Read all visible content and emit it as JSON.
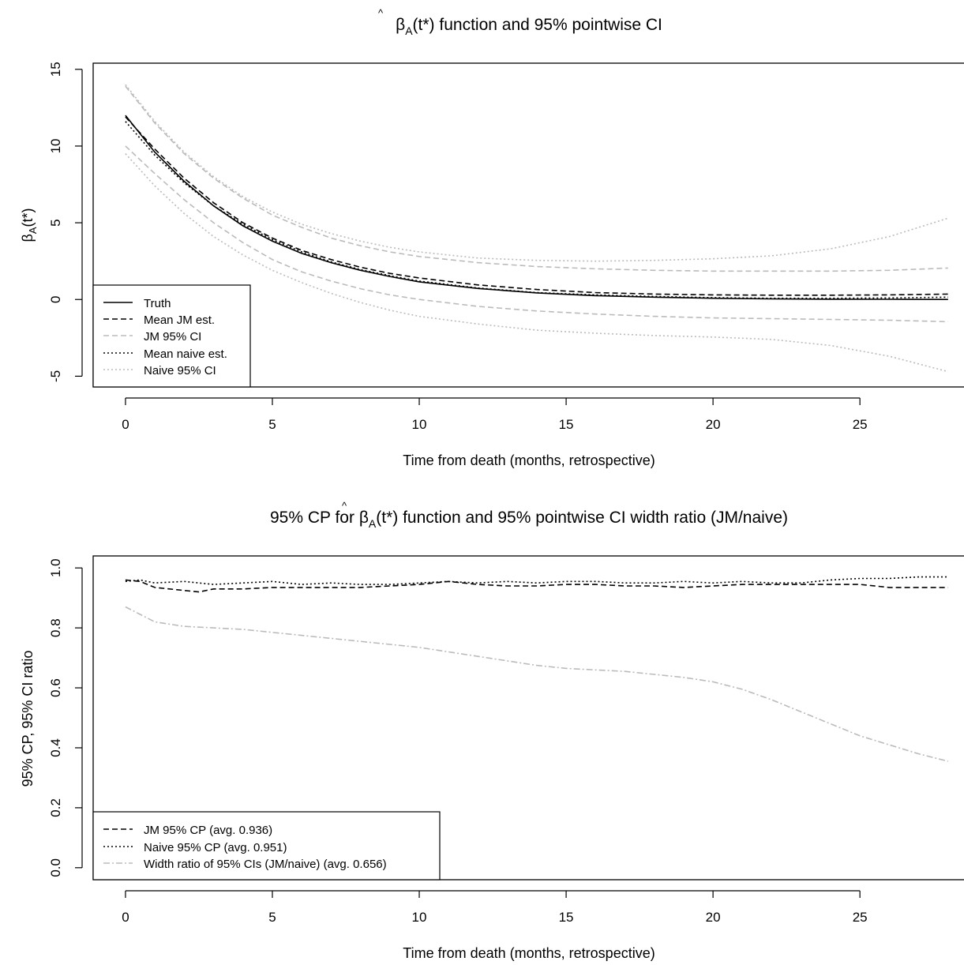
{
  "chart_data": [
    {
      "type": "line",
      "title_prefix": "",
      "title_symbol": "β",
      "title_symbol_sub": "A",
      "title_suffix": "(t*) function and 95% pointwise CI",
      "xlabel": "Time from death (months, retrospective)",
      "ylabel_symbol": "β",
      "ylabel_sub": "A",
      "ylabel_suffix": "(t*)",
      "xlim": [
        -1.1,
        29.0
      ],
      "ylim": [
        -5.7,
        15.4
      ],
      "xticks": [
        0,
        5,
        10,
        15,
        20,
        25
      ],
      "yticks": [
        -5,
        0,
        5,
        10,
        15
      ],
      "legend_position": "bottom-left",
      "series": [
        {
          "name": "Truth",
          "style": "solid",
          "color": "#000000",
          "x": [
            0,
            1,
            2,
            3,
            4,
            5,
            6,
            7,
            8,
            9,
            10,
            12,
            14,
            16,
            18,
            20,
            22,
            24,
            26,
            28
          ],
          "y": [
            12.0,
            9.6,
            7.7,
            6.1,
            4.8,
            3.8,
            3.0,
            2.4,
            1.9,
            1.5,
            1.15,
            0.72,
            0.43,
            0.25,
            0.15,
            0.08,
            0.04,
            0.02,
            0.01,
            0.0
          ]
        },
        {
          "name": "Mean JM est.",
          "style": "dashed",
          "color": "#000000",
          "x": [
            0,
            1,
            2,
            3,
            4,
            5,
            6,
            7,
            8,
            9,
            10,
            12,
            14,
            16,
            18,
            20,
            22,
            24,
            26,
            28
          ],
          "y": [
            11.9,
            9.8,
            7.9,
            6.3,
            5.0,
            4.0,
            3.2,
            2.6,
            2.1,
            1.7,
            1.4,
            0.95,
            0.65,
            0.45,
            0.35,
            0.3,
            0.28,
            0.28,
            0.3,
            0.35
          ]
        },
        {
          "name": "JM 95% CI",
          "style": "dashed",
          "color": "#bbbbbb",
          "x": [
            0,
            1,
            2,
            3,
            4,
            5,
            6,
            7,
            8,
            9,
            10,
            12,
            14,
            16,
            18,
            20,
            22,
            24,
            26,
            28
          ],
          "y": [
            13.9,
            11.5,
            9.5,
            7.9,
            6.6,
            5.5,
            4.7,
            4.0,
            3.5,
            3.1,
            2.8,
            2.4,
            2.15,
            2.0,
            1.9,
            1.85,
            1.85,
            1.85,
            1.9,
            2.05
          ]
        },
        {
          "name": "",
          "style": "dashed",
          "color": "#bbbbbb",
          "x": [
            0,
            1,
            2,
            3,
            4,
            5,
            6,
            7,
            8,
            9,
            10,
            12,
            14,
            16,
            18,
            20,
            22,
            24,
            26,
            28
          ],
          "y": [
            10.0,
            8.2,
            6.5,
            5.0,
            3.7,
            2.6,
            1.8,
            1.2,
            0.7,
            0.3,
            0.0,
            -0.45,
            -0.75,
            -0.95,
            -1.1,
            -1.2,
            -1.25,
            -1.3,
            -1.35,
            -1.45
          ]
        },
        {
          "name": "Mean naive est.",
          "style": "dotted",
          "color": "#000000",
          "x": [
            0,
            1,
            2,
            3,
            4,
            5,
            6,
            7,
            8,
            9,
            10,
            12,
            14,
            16,
            18,
            20,
            22,
            24,
            26,
            28
          ],
          "y": [
            11.6,
            9.4,
            7.6,
            6.1,
            4.9,
            3.9,
            3.1,
            2.45,
            1.95,
            1.55,
            1.2,
            0.75,
            0.45,
            0.3,
            0.2,
            0.12,
            0.08,
            0.08,
            0.1,
            0.15
          ]
        },
        {
          "name": "Naive 95% CI",
          "style": "dotted",
          "color": "#bbbbbb",
          "x": [
            0,
            1,
            2,
            3,
            4,
            5,
            6,
            7,
            8,
            9,
            10,
            12,
            14,
            16,
            18,
            20,
            22,
            24,
            26,
            28
          ],
          "y": [
            14.0,
            11.6,
            9.6,
            8.0,
            6.7,
            5.7,
            4.9,
            4.3,
            3.8,
            3.4,
            3.1,
            2.7,
            2.55,
            2.5,
            2.55,
            2.65,
            2.85,
            3.3,
            4.1,
            5.3
          ]
        },
        {
          "name": "",
          "style": "dotted",
          "color": "#bbbbbb",
          "x": [
            0,
            1,
            2,
            3,
            4,
            5,
            6,
            7,
            8,
            9,
            10,
            12,
            14,
            16,
            18,
            20,
            22,
            24,
            26,
            28
          ],
          "y": [
            9.5,
            7.4,
            5.6,
            4.1,
            2.9,
            1.9,
            1.1,
            0.4,
            -0.2,
            -0.7,
            -1.1,
            -1.6,
            -2.0,
            -2.2,
            -2.35,
            -2.45,
            -2.6,
            -3.0,
            -3.7,
            -4.7
          ]
        }
      ]
    },
    {
      "type": "line",
      "title_prefix": "95% CP for ",
      "title_symbol": "β",
      "title_symbol_sub": "A",
      "title_suffix": "(t*) function and 95% pointwise CI width ratio (JM/naive)",
      "xlabel": "Time from death (months, retrospective)",
      "ylabel": "95% CP, 95% CI ratio",
      "xlim": [
        -1.1,
        29.0
      ],
      "ylim": [
        -0.04,
        1.04
      ],
      "xticks": [
        0,
        5,
        10,
        15,
        20,
        25
      ],
      "yticks": [
        0.0,
        0.2,
        0.4,
        0.6,
        0.8,
        1.0
      ],
      "legend_position": "bottom-left",
      "series": [
        {
          "name": "JM 95% CP (avg. 0.936)",
          "style": "dashed",
          "color": "#000000",
          "x": [
            0,
            0.5,
            1,
            2,
            2.5,
            3,
            4,
            5,
            6,
            7,
            8,
            9,
            10,
            11,
            12,
            13,
            14,
            15,
            16,
            17,
            18,
            19,
            20,
            21,
            22,
            23,
            24,
            25,
            26,
            27,
            28
          ],
          "y": [
            0.96,
            0.955,
            0.935,
            0.925,
            0.92,
            0.93,
            0.93,
            0.935,
            0.935,
            0.935,
            0.935,
            0.94,
            0.945,
            0.955,
            0.945,
            0.94,
            0.94,
            0.945,
            0.945,
            0.94,
            0.94,
            0.935,
            0.94,
            0.945,
            0.945,
            0.945,
            0.945,
            0.945,
            0.935,
            0.935,
            0.935
          ]
        },
        {
          "name": "Naive 95% CP (avg. 0.951)",
          "style": "dotted",
          "color": "#000000",
          "x": [
            0,
            0.5,
            1,
            2,
            3,
            4,
            5,
            6,
            7,
            8,
            9,
            10,
            11,
            12,
            13,
            14,
            15,
            16,
            17,
            18,
            19,
            20,
            21,
            22,
            23,
            24,
            25,
            26,
            27,
            28
          ],
          "y": [
            0.955,
            0.96,
            0.95,
            0.955,
            0.945,
            0.95,
            0.955,
            0.945,
            0.95,
            0.945,
            0.945,
            0.95,
            0.955,
            0.95,
            0.955,
            0.95,
            0.955,
            0.955,
            0.95,
            0.95,
            0.955,
            0.95,
            0.955,
            0.95,
            0.95,
            0.96,
            0.965,
            0.965,
            0.97,
            0.97
          ]
        },
        {
          "name": "Width ratio of 95% CIs (JM/naive) (avg. 0.656)",
          "style": "dashdot",
          "color": "#bbbbbb",
          "x": [
            0,
            0.5,
            1,
            2,
            3,
            4,
            5,
            6,
            7,
            8,
            9,
            10,
            11,
            12,
            13,
            14,
            15,
            16,
            17,
            18,
            19,
            20,
            21,
            22,
            23,
            24,
            25,
            26,
            27,
            28
          ],
          "y": [
            0.87,
            0.845,
            0.82,
            0.805,
            0.8,
            0.795,
            0.785,
            0.775,
            0.765,
            0.755,
            0.745,
            0.735,
            0.72,
            0.705,
            0.69,
            0.675,
            0.665,
            0.66,
            0.655,
            0.645,
            0.635,
            0.62,
            0.595,
            0.56,
            0.52,
            0.48,
            0.44,
            0.41,
            0.38,
            0.355
          ]
        }
      ]
    }
  ]
}
